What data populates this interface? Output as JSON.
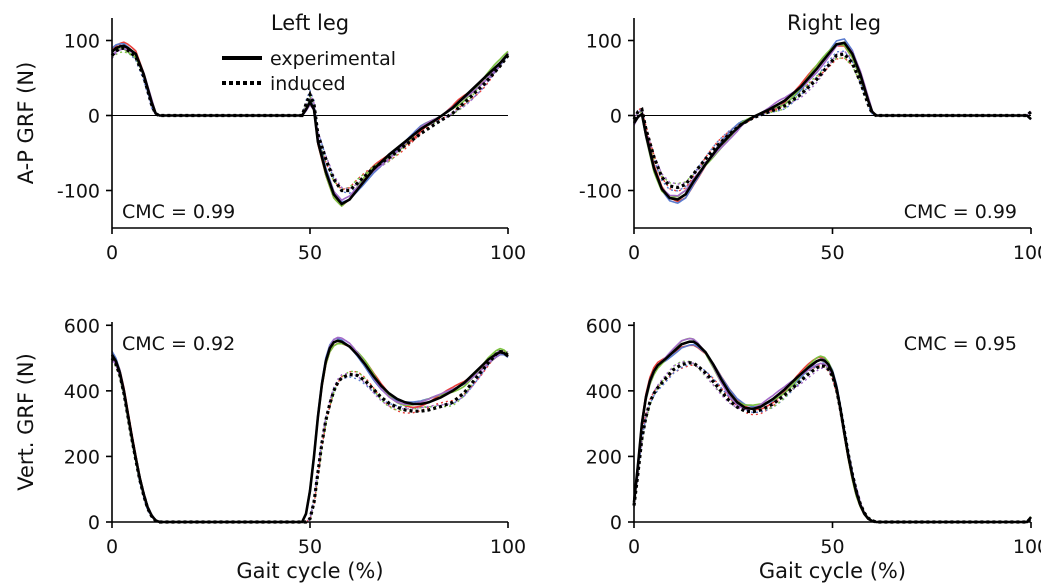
{
  "chart_data": {
    "type": "line",
    "column_titles": [
      "Left leg",
      "Right leg"
    ],
    "legend": {
      "placement": "top-left",
      "entries": [
        {
          "label": "experimental",
          "style": "solid"
        },
        {
          "label": "induced",
          "style": "dotted"
        }
      ]
    },
    "colors": {
      "mean": "#000000",
      "trial1": "#e8403c",
      "trial2": "#5b7ccf",
      "trial3": "#7dc242",
      "trial4": "#a46bc9"
    },
    "panels": [
      {
        "id": "ap-left",
        "ylabel": "A-P GRF (N)",
        "xlabel": "",
        "xlim": [
          0,
          100
        ],
        "ylim": [
          -150,
          130
        ],
        "xticks": [
          0,
          50,
          100
        ],
        "yticks": [
          -100,
          0,
          100
        ],
        "zero_line": true,
        "cmc": "CMC = 0.99",
        "cmc_position": "bottom-left",
        "experimental": [
          [
            0,
            85
          ],
          [
            1,
            90
          ],
          [
            2,
            92
          ],
          [
            3,
            93
          ],
          [
            4,
            90
          ],
          [
            6,
            82
          ],
          [
            8,
            55
          ],
          [
            10,
            18
          ],
          [
            11,
            3
          ],
          [
            12,
            0
          ],
          [
            48,
            0
          ],
          [
            49,
            8
          ],
          [
            50,
            18
          ],
          [
            51,
            8
          ],
          [
            52,
            -35
          ],
          [
            54,
            -75
          ],
          [
            56,
            -105
          ],
          [
            58,
            -118
          ],
          [
            60,
            -112
          ],
          [
            63,
            -92
          ],
          [
            66,
            -72
          ],
          [
            70,
            -52
          ],
          [
            74,
            -35
          ],
          [
            78,
            -18
          ],
          [
            82,
            -5
          ],
          [
            86,
            10
          ],
          [
            90,
            30
          ],
          [
            94,
            50
          ],
          [
            98,
            70
          ],
          [
            100,
            82
          ]
        ],
        "induced": [
          [
            0,
            80
          ],
          [
            1,
            86
          ],
          [
            2,
            89
          ],
          [
            3,
            90
          ],
          [
            4,
            87
          ],
          [
            6,
            78
          ],
          [
            8,
            52
          ],
          [
            10,
            15
          ],
          [
            11,
            2
          ],
          [
            12,
            0
          ],
          [
            48,
            0
          ],
          [
            49,
            15
          ],
          [
            50,
            28
          ],
          [
            51,
            15
          ],
          [
            52,
            -25
          ],
          [
            54,
            -58
          ],
          [
            56,
            -85
          ],
          [
            58,
            -100
          ],
          [
            60,
            -100
          ],
          [
            63,
            -85
          ],
          [
            66,
            -70
          ],
          [
            70,
            -56
          ],
          [
            74,
            -40
          ],
          [
            78,
            -24
          ],
          [
            82,
            -10
          ],
          [
            86,
            3
          ],
          [
            90,
            22
          ],
          [
            94,
            42
          ],
          [
            98,
            66
          ],
          [
            100,
            80
          ]
        ]
      },
      {
        "id": "ap-right",
        "ylabel": "",
        "xlabel": "",
        "xlim": [
          0,
          100
        ],
        "ylim": [
          -150,
          130
        ],
        "xticks": [
          0,
          50,
          100
        ],
        "yticks": [
          -100,
          0,
          100
        ],
        "zero_line": true,
        "cmc": "CMC = 0.99",
        "cmc_position": "bottom-right",
        "experimental": [
          [
            0,
            -10
          ],
          [
            1,
            -2
          ],
          [
            2,
            2
          ],
          [
            3,
            -25
          ],
          [
            5,
            -70
          ],
          [
            7,
            -98
          ],
          [
            9,
            -110
          ],
          [
            11,
            -112
          ],
          [
            13,
            -105
          ],
          [
            15,
            -88
          ],
          [
            18,
            -65
          ],
          [
            21,
            -44
          ],
          [
            24,
            -27
          ],
          [
            27,
            -12
          ],
          [
            30,
            -2
          ],
          [
            34,
            8
          ],
          [
            38,
            20
          ],
          [
            42,
            38
          ],
          [
            46,
            62
          ],
          [
            49,
            82
          ],
          [
            51,
            95
          ],
          [
            53,
            97
          ],
          [
            55,
            82
          ],
          [
            57,
            55
          ],
          [
            59,
            20
          ],
          [
            60,
            5
          ],
          [
            61,
            0
          ],
          [
            99,
            0
          ],
          [
            100,
            -5
          ]
        ],
        "induced": [
          [
            0,
            -5
          ],
          [
            1,
            5
          ],
          [
            2,
            8
          ],
          [
            3,
            -18
          ],
          [
            5,
            -55
          ],
          [
            7,
            -82
          ],
          [
            9,
            -94
          ],
          [
            11,
            -96
          ],
          [
            13,
            -92
          ],
          [
            15,
            -78
          ],
          [
            18,
            -58
          ],
          [
            21,
            -40
          ],
          [
            24,
            -25
          ],
          [
            27,
            -12
          ],
          [
            30,
            -3
          ],
          [
            34,
            5
          ],
          [
            38,
            13
          ],
          [
            42,
            28
          ],
          [
            46,
            48
          ],
          [
            49,
            67
          ],
          [
            51,
            80
          ],
          [
            53,
            82
          ],
          [
            55,
            70
          ],
          [
            57,
            45
          ],
          [
            59,
            15
          ],
          [
            60,
            3
          ],
          [
            61,
            0
          ],
          [
            99,
            0
          ],
          [
            100,
            5
          ]
        ]
      },
      {
        "id": "vert-left",
        "ylabel": "Vert. GRF (N)",
        "xlabel": "Gait cycle (%)",
        "xlim": [
          0,
          100
        ],
        "ylim": [
          0,
          610
        ],
        "xticks": [
          0,
          50,
          100
        ],
        "yticks": [
          0,
          200,
          400,
          600
        ],
        "zero_line": false,
        "cmc": "CMC = 0.92",
        "cmc_position": "top-left",
        "experimental": [
          [
            0,
            510
          ],
          [
            1,
            490
          ],
          [
            2,
            455
          ],
          [
            3,
            400
          ],
          [
            4,
            330
          ],
          [
            5,
            260
          ],
          [
            6,
            195
          ],
          [
            7,
            135
          ],
          [
            8,
            85
          ],
          [
            9,
            45
          ],
          [
            10,
            20
          ],
          [
            11,
            5
          ],
          [
            12,
            0
          ],
          [
            48,
            0
          ],
          [
            49,
            25
          ],
          [
            50,
            95
          ],
          [
            51,
            200
          ],
          [
            52,
            320
          ],
          [
            53,
            420
          ],
          [
            54,
            490
          ],
          [
            55,
            530
          ],
          [
            56,
            548
          ],
          [
            57,
            553
          ],
          [
            58,
            550
          ],
          [
            60,
            535
          ],
          [
            62,
            510
          ],
          [
            64,
            480
          ],
          [
            66,
            445
          ],
          [
            68,
            415
          ],
          [
            70,
            392
          ],
          [
            72,
            375
          ],
          [
            74,
            365
          ],
          [
            76,
            360
          ],
          [
            78,
            360
          ],
          [
            80,
            365
          ],
          [
            83,
            380
          ],
          [
            86,
            400
          ],
          [
            89,
            425
          ],
          [
            92,
            460
          ],
          [
            95,
            495
          ],
          [
            97,
            512
          ],
          [
            98,
            518
          ],
          [
            99,
            515
          ],
          [
            100,
            505
          ]
        ],
        "induced": [
          [
            0,
            500
          ],
          [
            1,
            482
          ],
          [
            2,
            448
          ],
          [
            3,
            393
          ],
          [
            4,
            325
          ],
          [
            5,
            255
          ],
          [
            6,
            190
          ],
          [
            7,
            130
          ],
          [
            8,
            82
          ],
          [
            9,
            42
          ],
          [
            10,
            18
          ],
          [
            11,
            4
          ],
          [
            12,
            0
          ],
          [
            49,
            0
          ],
          [
            50,
            10
          ],
          [
            51,
            60
          ],
          [
            52,
            150
          ],
          [
            53,
            240
          ],
          [
            54,
            310
          ],
          [
            55,
            360
          ],
          [
            56,
            400
          ],
          [
            57,
            425
          ],
          [
            58,
            440
          ],
          [
            60,
            450
          ],
          [
            62,
            447
          ],
          [
            64,
            430
          ],
          [
            66,
            405
          ],
          [
            68,
            380
          ],
          [
            70,
            362
          ],
          [
            72,
            350
          ],
          [
            74,
            342
          ],
          [
            76,
            338
          ],
          [
            78,
            338
          ],
          [
            80,
            342
          ],
          [
            83,
            352
          ],
          [
            86,
            365
          ],
          [
            89,
            395
          ],
          [
            92,
            440
          ],
          [
            95,
            485
          ],
          [
            97,
            512
          ],
          [
            98,
            520
          ],
          [
            99,
            518
          ],
          [
            100,
            508
          ]
        ]
      },
      {
        "id": "vert-right",
        "ylabel": "",
        "xlabel": "Gait cycle (%)",
        "xlim": [
          0,
          100
        ],
        "ylim": [
          0,
          610
        ],
        "xticks": [
          0,
          50,
          100
        ],
        "yticks": [
          0,
          200,
          400,
          600
        ],
        "zero_line": false,
        "cmc": "CMC = 0.95",
        "cmc_position": "top-right",
        "experimental": [
          [
            0,
            60
          ],
          [
            1,
            175
          ],
          [
            2,
            300
          ],
          [
            3,
            380
          ],
          [
            4,
            430
          ],
          [
            5,
            460
          ],
          [
            6,
            478
          ],
          [
            8,
            498
          ],
          [
            10,
            520
          ],
          [
            12,
            542
          ],
          [
            14,
            550
          ],
          [
            15,
            550
          ],
          [
            16,
            542
          ],
          [
            18,
            518
          ],
          [
            20,
            480
          ],
          [
            22,
            435
          ],
          [
            24,
            395
          ],
          [
            26,
            365
          ],
          [
            28,
            348
          ],
          [
            30,
            345
          ],
          [
            32,
            352
          ],
          [
            35,
            375
          ],
          [
            38,
            405
          ],
          [
            41,
            440
          ],
          [
            44,
            472
          ],
          [
            46,
            490
          ],
          [
            47,
            495
          ],
          [
            48,
            492
          ],
          [
            49,
            480
          ],
          [
            50,
            455
          ],
          [
            51,
            410
          ],
          [
            52,
            345
          ],
          [
            53,
            270
          ],
          [
            54,
            200
          ],
          [
            55,
            140
          ],
          [
            56,
            90
          ],
          [
            57,
            52
          ],
          [
            58,
            25
          ],
          [
            59,
            10
          ],
          [
            60,
            3
          ],
          [
            61,
            0
          ],
          [
            99,
            0
          ],
          [
            100,
            15
          ]
        ],
        "induced": [
          [
            0,
            50
          ],
          [
            1,
            150
          ],
          [
            2,
            255
          ],
          [
            3,
            320
          ],
          [
            4,
            365
          ],
          [
            5,
            392
          ],
          [
            6,
            410
          ],
          [
            8,
            438
          ],
          [
            10,
            465
          ],
          [
            12,
            480
          ],
          [
            14,
            486
          ],
          [
            15,
            484
          ],
          [
            16,
            476
          ],
          [
            18,
            455
          ],
          [
            20,
            428
          ],
          [
            22,
            398
          ],
          [
            24,
            370
          ],
          [
            26,
            350
          ],
          [
            28,
            338
          ],
          [
            30,
            336
          ],
          [
            32,
            342
          ],
          [
            35,
            360
          ],
          [
            38,
            388
          ],
          [
            41,
            420
          ],
          [
            44,
            452
          ],
          [
            46,
            470
          ],
          [
            47,
            476
          ],
          [
            48,
            475
          ],
          [
            49,
            466
          ],
          [
            50,
            445
          ],
          [
            51,
            405
          ],
          [
            52,
            345
          ],
          [
            53,
            275
          ],
          [
            54,
            205
          ],
          [
            55,
            145
          ],
          [
            56,
            95
          ],
          [
            57,
            55
          ],
          [
            58,
            28
          ],
          [
            59,
            12
          ],
          [
            60,
            4
          ],
          [
            61,
            0
          ],
          [
            99,
            0
          ],
          [
            100,
            12
          ]
        ]
      }
    ]
  }
}
